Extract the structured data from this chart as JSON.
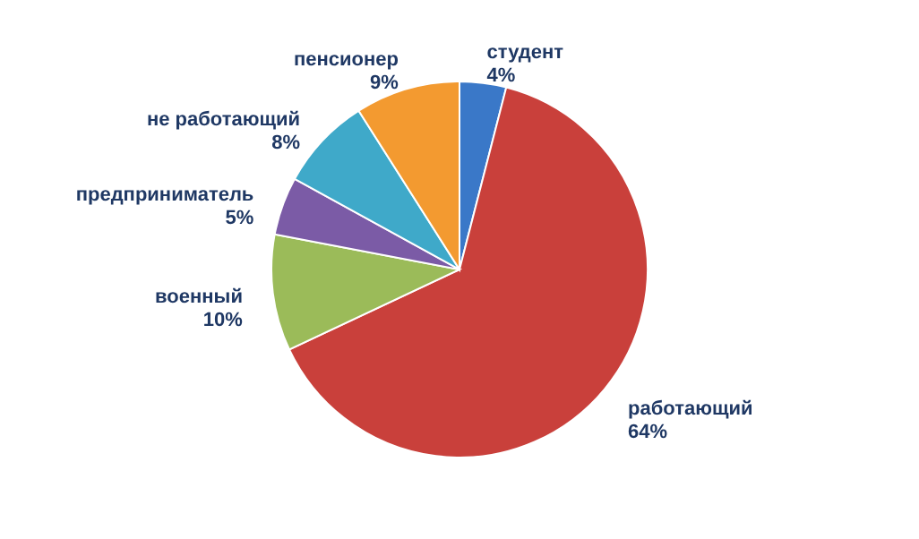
{
  "chart_data": {
    "type": "pie",
    "categories": [
      "студент",
      "работающий",
      "военный",
      "предприниматель",
      "не работающий",
      "пенсионер"
    ],
    "values": [
      4,
      64,
      10,
      5,
      8,
      9
    ],
    "value_labels": [
      "4%",
      "64%",
      "10%",
      "5%",
      "8%",
      "9%"
    ],
    "colors": [
      "#3a78c8",
      "#c9403b",
      "#9bbb59",
      "#7b5ba6",
      "#3fa9c9",
      "#f39a30"
    ],
    "legend": false
  }
}
